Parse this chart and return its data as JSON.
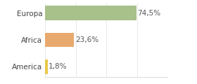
{
  "categories": [
    "America",
    "Africa",
    "Europa"
  ],
  "values": [
    1.8,
    23.6,
    74.5
  ],
  "bar_colors": [
    "#e8c84a",
    "#e8a96e",
    "#a8c08a"
  ],
  "labels": [
    "1,8%",
    "23,6%",
    "74,5%"
  ],
  "xlim": [
    0,
    100
  ],
  "background_color": "#ffffff",
  "label_fontsize": 7.5,
  "category_fontsize": 7.5
}
